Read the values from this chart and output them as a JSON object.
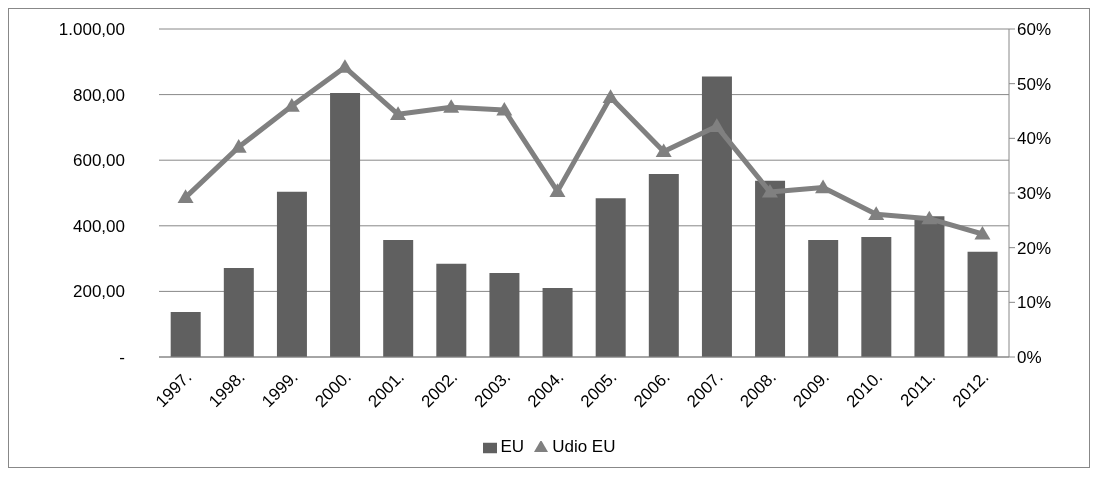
{
  "chart_data": {
    "type": "bar",
    "categories": [
      "1997.",
      "1998.",
      "1999.",
      "2000.",
      "2001.",
      "2002.",
      "2003.",
      "2004.",
      "2005.",
      "2006.",
      "2007.",
      "2008.",
      "2009.",
      "2010.",
      "2011.",
      "2012."
    ],
    "series": [
      {
        "name": "EU",
        "color": "#606060",
        "values": [
          137,
          271,
          504,
          805,
          357,
          284,
          256,
          210,
          484,
          558,
          855,
          537,
          357,
          366,
          429,
          321
        ]
      },
      {
        "name": "Udio EU",
        "type": "line",
        "axis": "y2",
        "color": "#808080",
        "values": [
          29.2,
          38.4,
          45.9,
          53.0,
          44.4,
          45.7,
          45.2,
          30.3,
          47.5,
          37.6,
          42.2,
          30.2,
          31.0,
          26.1,
          25.3,
          22.5
        ]
      }
    ],
    "ylim": [
      0,
      1000
    ],
    "yticks": [
      {
        "value": 0,
        "label": "-"
      },
      {
        "value": 200,
        "label": "200,00"
      },
      {
        "value": 400,
        "label": "400,00"
      },
      {
        "value": 600,
        "label": "600,00"
      },
      {
        "value": 800,
        "label": "800,00"
      },
      {
        "value": 1000,
        "label": "1.000,00"
      }
    ],
    "y2lim": [
      0,
      60
    ],
    "y2ticks": [
      {
        "value": 0,
        "label": "0%"
      },
      {
        "value": 10,
        "label": "10%"
      },
      {
        "value": 20,
        "label": "20%"
      },
      {
        "value": 30,
        "label": "30%"
      },
      {
        "value": 40,
        "label": "40%"
      },
      {
        "value": 50,
        "label": "50%"
      },
      {
        "value": 60,
        "label": "60%"
      }
    ],
    "grid": "y",
    "legend": "bottom",
    "marker": "triangle"
  }
}
